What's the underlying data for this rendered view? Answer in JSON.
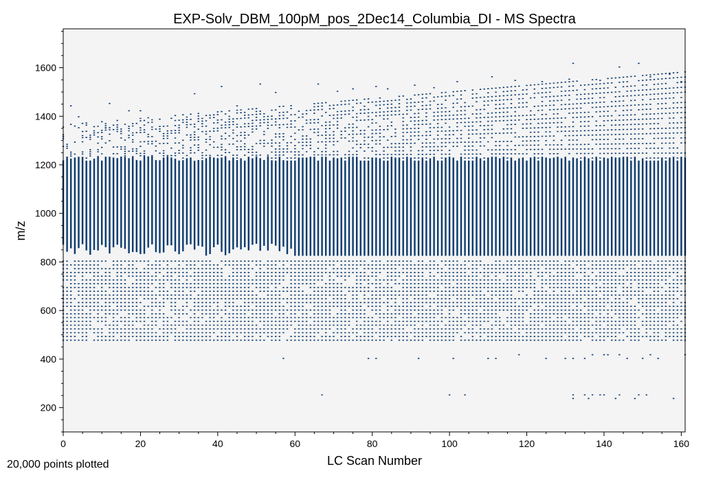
{
  "chart_data": {
    "type": "scatter",
    "title": "EXP-Solv_DBM_100pM_pos_2Dec14_Columbia_DI - MS Spectra",
    "xlabel": "LC Scan Number",
    "ylabel": "m/z",
    "xlim": [
      0,
      161
    ],
    "ylim": [
      100,
      1760
    ],
    "x_ticks": [
      0,
      20,
      40,
      60,
      80,
      100,
      120,
      140,
      160
    ],
    "y_ticks": [
      200,
      400,
      600,
      800,
      1000,
      1200,
      1400,
      1600
    ],
    "grid": false,
    "legend": "none",
    "background_color": "#f4f4f4",
    "point_color": "#0b3a6e",
    "series": [
      {
        "x_range": [
          0,
          161
        ],
        "dense_mz_bands": [
          {
            "from": 830,
            "to": 1220,
            "spacing": 3.2
          },
          {
            "from": 480,
            "to": 810,
            "spacing": 15.5
          }
        ],
        "sparse_points": [
          [
            2,
            1445
          ],
          [
            4,
            1400
          ],
          [
            12,
            1455
          ],
          [
            11,
            1355
          ],
          [
            17,
            1425
          ],
          [
            20,
            1425
          ],
          [
            34,
            1495
          ],
          [
            41,
            1525
          ],
          [
            45,
            1445
          ],
          [
            51,
            1535
          ],
          [
            55,
            1500
          ],
          [
            66,
            1535
          ],
          [
            71,
            1505
          ],
          [
            75,
            1515
          ],
          [
            81,
            1525
          ],
          [
            84,
            1515
          ],
          [
            91,
            1530
          ],
          [
            96,
            1520
          ],
          [
            102,
            1545
          ],
          [
            111,
            1565
          ],
          [
            117,
            1550
          ],
          [
            124,
            1545
          ],
          [
            131,
            1555
          ],
          [
            132,
            1620
          ],
          [
            139,
            1550
          ],
          [
            144,
            1605
          ],
          [
            149,
            1620
          ],
          [
            152,
            1565
          ],
          [
            157,
            1575
          ],
          [
            160,
            1545
          ],
          [
            57,
            405
          ],
          [
            79,
            405
          ],
          [
            81,
            405
          ],
          [
            92,
            405
          ],
          [
            101,
            405
          ],
          [
            110,
            405
          ],
          [
            112,
            405
          ],
          [
            118,
            420
          ],
          [
            125,
            405
          ],
          [
            130,
            405
          ],
          [
            132,
            405
          ],
          [
            135,
            405
          ],
          [
            137,
            420
          ],
          [
            140,
            420
          ],
          [
            141,
            420
          ],
          [
            144,
            420
          ],
          [
            146,
            405
          ],
          [
            150,
            405
          ],
          [
            152,
            420
          ],
          [
            154,
            405
          ],
          [
            161,
            420
          ],
          [
            67,
            255
          ],
          [
            100,
            255
          ],
          [
            104,
            255
          ],
          [
            132,
            240
          ],
          [
            132,
            255
          ],
          [
            135,
            255
          ],
          [
            136,
            240
          ],
          [
            137,
            255
          ],
          [
            139,
            255
          ],
          [
            140,
            255
          ],
          [
            143,
            240
          ],
          [
            144,
            255
          ],
          [
            148,
            240
          ],
          [
            149,
            255
          ],
          [
            151,
            255
          ],
          [
            158,
            240
          ]
        ]
      }
    ],
    "annotation": "20,000 points plotted"
  }
}
